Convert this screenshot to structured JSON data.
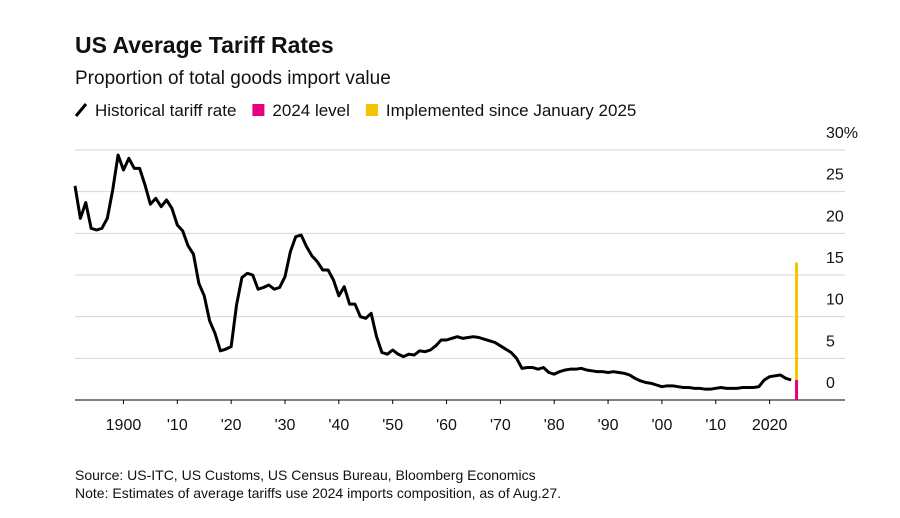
{
  "chart_data": {
    "type": "line",
    "title": "US Average Tariff Rates",
    "subtitle": "Proportion of total goods import value",
    "source": "Source: US-ITC, US Customs, US Census Bureau, Bloomberg Economics",
    "note": "Note: Estimates of average tariffs use 2024 imports composition, as of Aug.27.",
    "xlim": [
      1891,
      2034
    ],
    "ylim": [
      0,
      30
    ],
    "xticks": [
      {
        "value": 1900,
        "label": "1900"
      },
      {
        "value": 1910,
        "label": "'10"
      },
      {
        "value": 1920,
        "label": "'20"
      },
      {
        "value": 1930,
        "label": "'30"
      },
      {
        "value": 1940,
        "label": "'40"
      },
      {
        "value": 1950,
        "label": "'50"
      },
      {
        "value": 1960,
        "label": "'60"
      },
      {
        "value": 1970,
        "label": "'70"
      },
      {
        "value": 1980,
        "label": "'80"
      },
      {
        "value": 1990,
        "label": "'90"
      },
      {
        "value": 2000,
        "label": "'00"
      },
      {
        "value": 2010,
        "label": "'10"
      },
      {
        "value": 2020,
        "label": "2020"
      }
    ],
    "yticks": [
      0,
      5,
      10,
      15,
      20,
      25,
      {
        "value": 30,
        "label": "30%"
      }
    ],
    "grid": true,
    "series": [
      {
        "name": "Historical tariff rate",
        "color": "#000000",
        "type": "line",
        "x": [
          1891,
          1892,
          1893,
          1894,
          1895,
          1896,
          1897,
          1898,
          1899,
          1900,
          1901,
          1902,
          1903,
          1904,
          1905,
          1906,
          1907,
          1908,
          1909,
          1910,
          1911,
          1912,
          1913,
          1914,
          1915,
          1916,
          1917,
          1918,
          1919,
          1920,
          1921,
          1922,
          1923,
          1924,
          1925,
          1926,
          1927,
          1928,
          1929,
          1930,
          1931,
          1932,
          1933,
          1934,
          1935,
          1936,
          1937,
          1938,
          1939,
          1940,
          1941,
          1942,
          1943,
          1944,
          1945,
          1946,
          1947,
          1948,
          1949,
          1950,
          1951,
          1952,
          1953,
          1954,
          1955,
          1956,
          1957,
          1958,
          1959,
          1960,
          1961,
          1962,
          1963,
          1964,
          1965,
          1966,
          1967,
          1968,
          1969,
          1970,
          1971,
          1972,
          1973,
          1974,
          1975,
          1976,
          1977,
          1978,
          1979,
          1980,
          1981,
          1982,
          1983,
          1984,
          1985,
          1986,
          1987,
          1988,
          1989,
          1990,
          1991,
          1992,
          1993,
          1994,
          1995,
          1996,
          1997,
          1998,
          1999,
          2000,
          2001,
          2002,
          2003,
          2004,
          2005,
          2006,
          2007,
          2008,
          2009,
          2010,
          2011,
          2012,
          2013,
          2014,
          2015,
          2016,
          2017,
          2018,
          2019,
          2020,
          2021,
          2022,
          2023,
          2024
        ],
        "values": [
          25.7,
          21.8,
          23.7,
          20.6,
          20.4,
          20.6,
          21.8,
          25.2,
          29.4,
          27.6,
          29,
          27.8,
          27.8,
          25.8,
          23.5,
          24.2,
          23.2,
          24,
          23,
          21,
          20.3,
          18.5,
          17.5,
          14,
          12.5,
          9.5,
          8,
          5.9,
          6.1,
          6.4,
          11.4,
          14.7,
          15.2,
          15,
          13.3,
          13.5,
          13.8,
          13.3,
          13.5,
          14.8,
          17.8,
          19.6,
          19.8,
          18.4,
          17.3,
          16.6,
          15.6,
          15.6,
          14.4,
          12.5,
          13.6,
          11.5,
          11.5,
          10,
          9.8,
          10.4,
          7.6,
          5.7,
          5.5,
          6,
          5.5,
          5.2,
          5.5,
          5.4,
          5.9,
          5.8,
          6,
          6.5,
          7.2,
          7.2,
          7.4,
          7.6,
          7.4,
          7.5,
          7.6,
          7.5,
          7.3,
          7.1,
          6.9,
          6.5,
          6.1,
          5.7,
          5,
          3.8,
          3.9,
          3.9,
          3.7,
          3.9,
          3.3,
          3.1,
          3.4,
          3.6,
          3.7,
          3.7,
          3.8,
          3.6,
          3.5,
          3.4,
          3.4,
          3.3,
          3.4,
          3.3,
          3.2,
          3,
          2.6,
          2.3,
          2.1,
          2,
          1.8,
          1.6,
          1.7,
          1.7,
          1.6,
          1.5,
          1.5,
          1.4,
          1.4,
          1.3,
          1.3,
          1.4,
          1.5,
          1.4,
          1.4,
          1.4,
          1.5,
          1.5,
          1.5,
          1.6,
          2.4,
          2.8,
          2.9,
          3,
          2.6,
          2.4
        ]
      },
      {
        "name": "2024 level",
        "color": "#e6007e",
        "type": "bar",
        "x": [
          2025
        ],
        "values": [
          2.4
        ]
      },
      {
        "name": "Implemented since January 2025",
        "color": "#f5c400",
        "type": "bar",
        "x": [
          2025
        ],
        "values": [
          14.1
        ]
      }
    ]
  }
}
